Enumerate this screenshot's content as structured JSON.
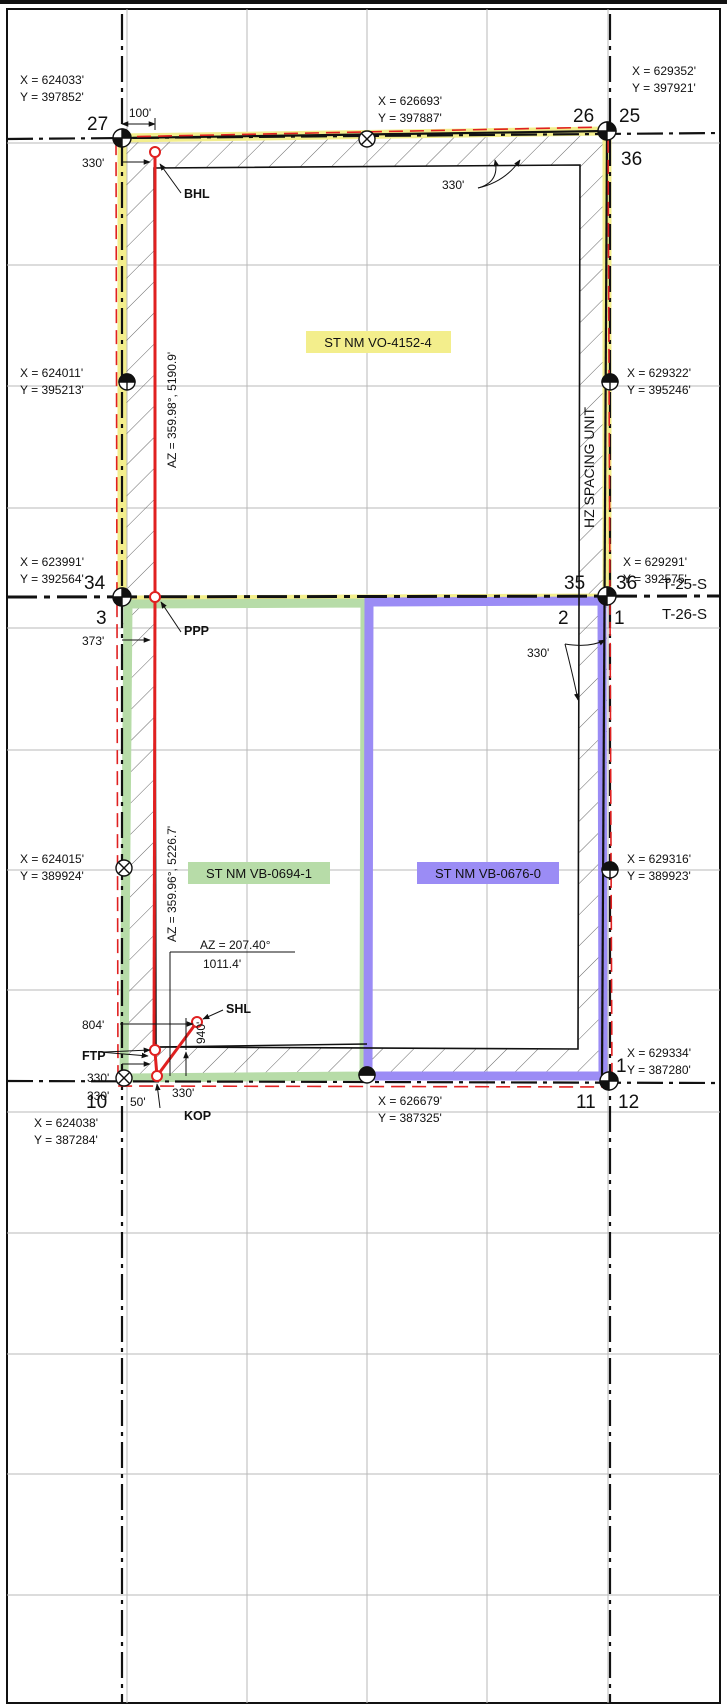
{
  "twp_labels": {
    "north": "T-25-S",
    "south": "T-26-S"
  },
  "spacing_unit_label": "HZ SPACING UNIT",
  "leases": [
    {
      "name": "ST NM VO-4152-4",
      "color": "#f3ee8c"
    },
    {
      "name": "ST NM VB-0694-1",
      "color": "#b7dca8"
    },
    {
      "name": "ST NM VB-0676-0",
      "color": "#9b8cf5"
    }
  ],
  "colors": {
    "wellbore": "#e02020",
    "lease_boundary": "#e02020",
    "grid": "#b8b8b8"
  },
  "corners": [
    {
      "x": "X = 624033'",
      "y": "Y = 397852'"
    },
    {
      "x": "X = 626693'",
      "y": "Y = 397887'"
    },
    {
      "x": "X = 629352'",
      "y": "Y = 397921'"
    },
    {
      "x": "X = 624011'",
      "y": "Y = 395213'"
    },
    {
      "x": "X = 629322'",
      "y": "Y = 395246'"
    },
    {
      "x": "X = 623991'",
      "y": "Y = 392564'"
    },
    {
      "x": "X = 629291'",
      "y": "Y = 392575'"
    },
    {
      "x": "X = 624015'",
      "y": "Y = 389924'"
    },
    {
      "x": "X = 629316'",
      "y": "Y = 389923'"
    },
    {
      "x": "X = 629334'",
      "y": "Y = 387280'"
    },
    {
      "x": "X = 626679'",
      "y": "Y = 387325'"
    },
    {
      "x": "X = 624038'",
      "y": "Y = 387284'"
    }
  ],
  "sections": {
    "s27": "27",
    "s26": "26",
    "s25": "25",
    "s36a": "36",
    "s34": "34",
    "s35": "35",
    "s36b": "36",
    "s3": "3",
    "s2": "2",
    "s1a": "1",
    "s1b": "1",
    "s10": "10",
    "s11": "11",
    "s12": "12"
  },
  "well_points": {
    "bhl": "BHL",
    "ppp": "PPP",
    "shl": "SHL",
    "ftp": "FTP",
    "kop": "KOP"
  },
  "bearings": {
    "upper": "AZ = 359.98°, 5190.9'",
    "lower": "AZ = 359.96°, 5226.7'",
    "spur_az": "AZ = 207.40°",
    "spur_dist": "1011.4'"
  },
  "dims": {
    "d100": "100'",
    "d330a": "330'",
    "d330b": "330'",
    "d373": "373'",
    "d330c": "330'",
    "d804": "804'",
    "d330d": "330'",
    "d330e": "330'",
    "d940": "940'",
    "d50": "50'",
    "d330f": "330'"
  }
}
